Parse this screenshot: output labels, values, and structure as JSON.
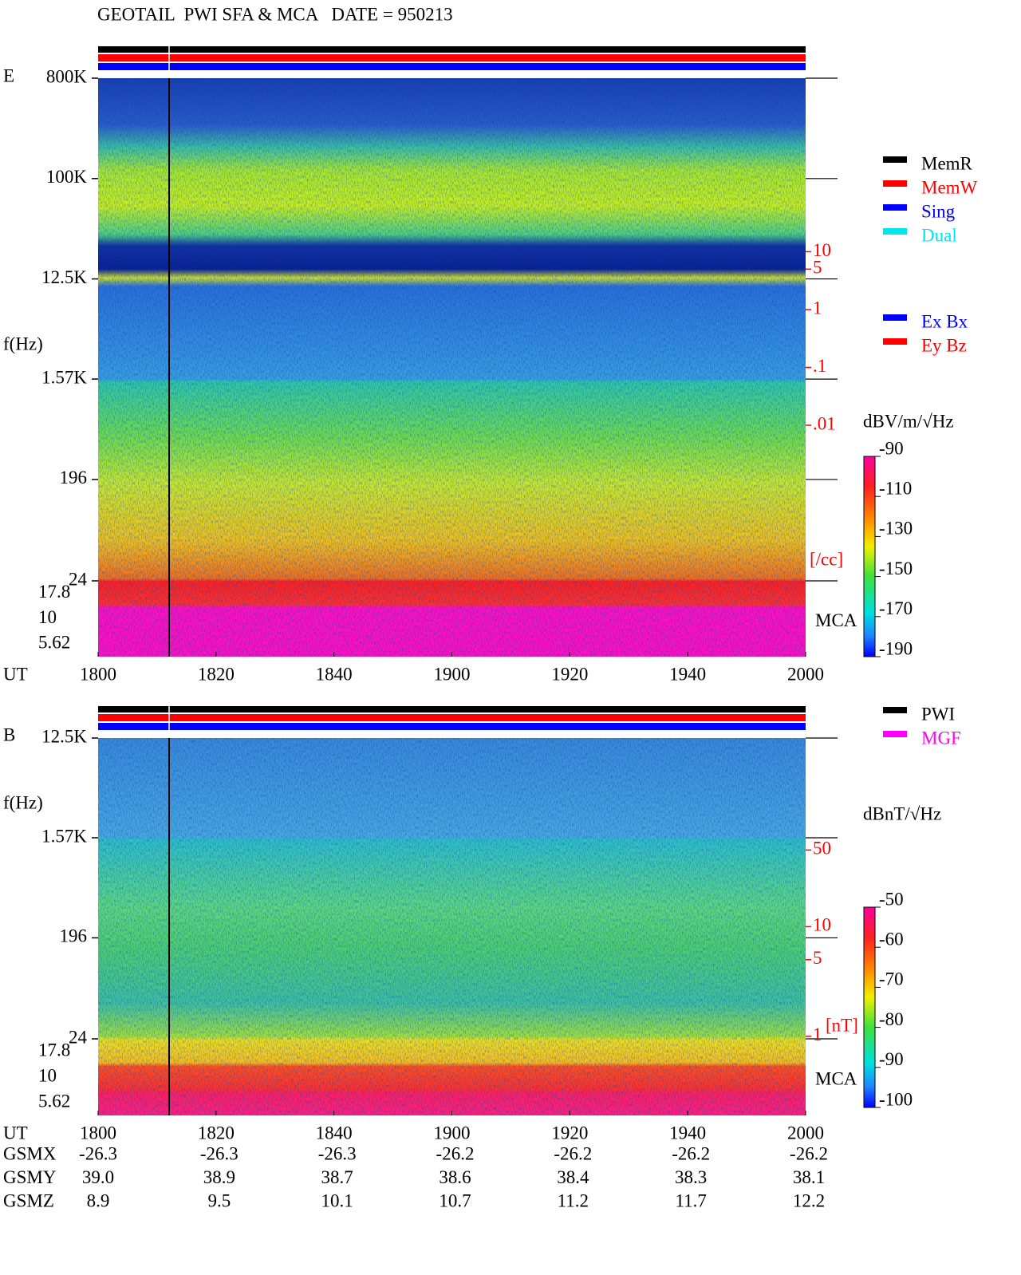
{
  "title": "GEOTAIL  PWI SFA & MCA   DATE = 950213",
  "chart_data": [
    {
      "type": "spectrogram",
      "panel": "E",
      "y_label": "f(Hz)",
      "x_label": "UT",
      "log_y": true,
      "ylim": [
        24,
        800000
      ],
      "yticks": [
        {
          "value": 800000,
          "label": "800K"
        },
        {
          "value": 100000,
          "label": "100K"
        },
        {
          "value": 12500,
          "label": "12.5K"
        },
        {
          "value": 1570,
          "label": "1.57K"
        },
        196,
        24
      ],
      "mca_label": "MCA",
      "mca_ticks": [
        17.8,
        10,
        5.62
      ],
      "x_ticks": [
        "1800",
        "1820",
        "1840",
        "1900",
        "1920",
        "1940",
        "2000"
      ],
      "y2lim": [
        1e-06,
        10000
      ],
      "y2ticks": [
        10,
        5,
        1,
        {
          "value": 0.1,
          "label": ".1"
        },
        {
          "value": 0.01,
          "label": ".01"
        }
      ],
      "y2_unit": "[/cc]",
      "y2_color": "#ff0000",
      "colorbar": {
        "label": "dBV/m/√Hz",
        "clim": [
          -190,
          -90
        ],
        "ticks": [
          -90,
          -110,
          -130,
          -150,
          -170,
          -190
        ]
      },
      "legend": [
        {
          "name": "MemR",
          "color": "#000000"
        },
        {
          "name": "MemW",
          "color": "#ff0000"
        },
        {
          "name": "Sing",
          "color": "#0000ff"
        },
        {
          "name": "Dual",
          "color": "#00e5ee"
        }
      ],
      "legend2": [
        {
          "name": "Ex Bx",
          "color": "#0000ff"
        },
        {
          "name": "Ey Bz",
          "color": "#ff0000"
        }
      ]
    },
    {
      "type": "spectrogram",
      "panel": "B",
      "y_label": "f(Hz)",
      "x_label": "UT",
      "log_y": true,
      "ylim": [
        24,
        12500
      ],
      "yticks": [
        {
          "value": 12500,
          "label": "12.5K"
        },
        {
          "value": 1570,
          "label": "1.57K"
        },
        196,
        24
      ],
      "mca_label": "MCA",
      "mca_ticks": [
        17.8,
        10,
        5.62
      ],
      "x_ticks": [
        "1800",
        "1820",
        "1840",
        "1900",
        "1920",
        "1940",
        "2000"
      ],
      "y2lim": [
        0.19,
        525
      ],
      "y2ticks": [
        50,
        10,
        5,
        1
      ],
      "y2_unit": "[nT]",
      "y2_color": "#ff0000",
      "colorbar": {
        "label": "dBnT/√Hz",
        "clim": [
          -100,
          -50
        ],
        "ticks": [
          -50,
          -60,
          -70,
          -80,
          -90,
          -100
        ]
      },
      "legend": [
        {
          "name": "PWI",
          "color": "#000000"
        },
        {
          "name": "MGF",
          "color": "#ff00ff"
        }
      ]
    }
  ],
  "orbit": {
    "rows": [
      {
        "label": "GSMX",
        "values": [
          "-26.3",
          "-26.3",
          "-26.3",
          "-26.2",
          "-26.2",
          "-26.2",
          "-26.2"
        ]
      },
      {
        "label": "GSMY",
        "values": [
          "39.0",
          "38.9",
          "38.7",
          "38.6",
          "38.4",
          "38.3",
          "38.1"
        ]
      },
      {
        "label": "GSMZ",
        "values": [
          "8.9",
          "9.5",
          "10.1",
          "10.7",
          "11.2",
          "11.7",
          "12.2"
        ]
      }
    ]
  }
}
